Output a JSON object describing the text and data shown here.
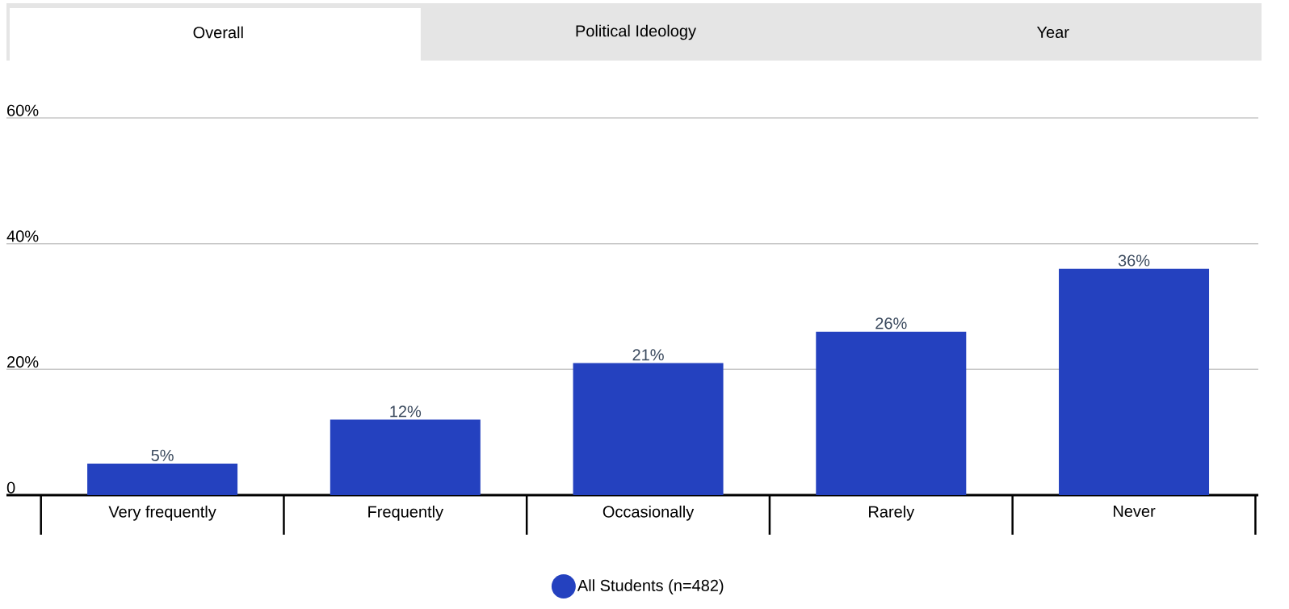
{
  "chart_data": {
    "type": "bar",
    "annotations": [
      "Overall",
      "Political Ideology",
      "Year"
    ],
    "categories": [
      "Very frequently",
      "Frequently",
      "Occasionally",
      "Rarely",
      "Never"
    ],
    "series": [
      {
        "name": "All Students (n=482)",
        "color": "#2441bf",
        "values": [
          5,
          12,
          21,
          26,
          36
        ],
        "value_labels": [
          "5%",
          "12%",
          "21%",
          "26%",
          "36%"
        ]
      }
    ],
    "ylim": [
      0,
      60
    ],
    "yticks": [
      0,
      {
        "value": 20,
        "label": "20%"
      },
      {
        "value": 40,
        "label": "40%"
      },
      {
        "value": 60,
        "label": "60%"
      }
    ],
    "grid": "y",
    "legend": "bottom",
    "marker": "circle"
  }
}
